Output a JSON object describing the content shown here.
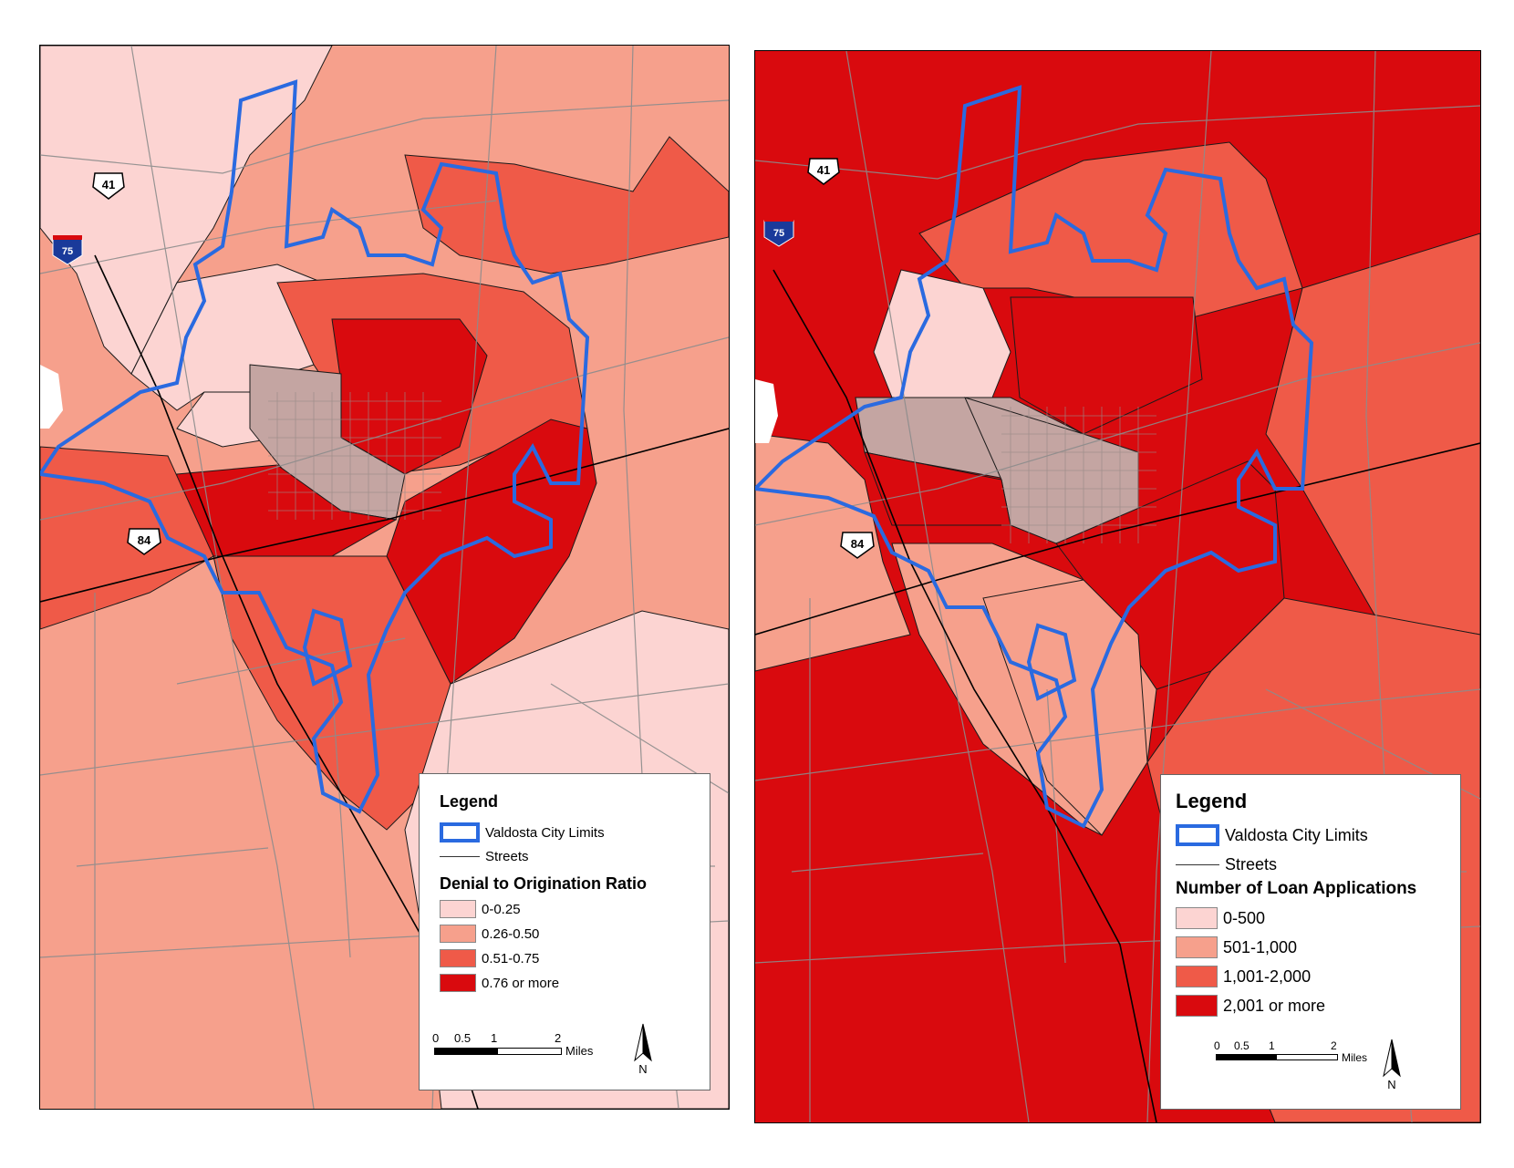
{
  "colors": {
    "class1": "#fcd4d2",
    "class2": "#f6a08c",
    "class3": "#ef5a48",
    "class4": "#d90a0e",
    "city_limits": "#2a6ae0",
    "streets": "#8c8c8c",
    "tract_border": "#1a1a1a"
  },
  "left_map": {
    "highways": {
      "us41": "41",
      "i75": "75",
      "us84": "84"
    },
    "legend": {
      "title": "Legend",
      "city_limits_label": "Valdosta City Limits",
      "streets_label": "Streets",
      "field_title": "Denial to Origination Ratio",
      "classes": [
        "0-0.25",
        "0.26-0.50",
        "0.51-0.75",
        "0.76 or more"
      ]
    },
    "scale": {
      "ticks": [
        "0",
        "0.5",
        "1",
        "2"
      ],
      "unit": "Miles"
    },
    "north": "N"
  },
  "right_map": {
    "highways": {
      "us41": "41",
      "i75": "75",
      "us84": "84"
    },
    "legend": {
      "title": "Legend",
      "city_limits_label": "Valdosta City Limits",
      "streets_label": "Streets",
      "field_title": "Number of Loan Applications",
      "classes": [
        "0-500",
        "501-1,000",
        "1,001-2,000",
        "2,001 or more"
      ]
    },
    "scale": {
      "ticks": [
        "0",
        "0.5",
        "1",
        "2"
      ],
      "unit": "Miles"
    },
    "north": "N"
  }
}
